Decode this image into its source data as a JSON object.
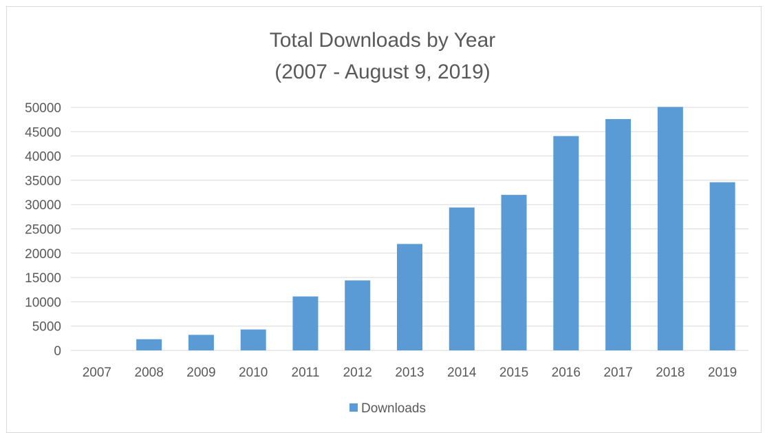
{
  "chart_data": {
    "type": "bar",
    "title": "Total Downloads by Year",
    "subtitle": "(2007 - August 9, 2019)",
    "xlabel": "",
    "ylabel": "",
    "categories": [
      "2007",
      "2008",
      "2009",
      "2010",
      "2011",
      "2012",
      "2013",
      "2014",
      "2015",
      "2016",
      "2017",
      "2018",
      "2019"
    ],
    "series": [
      {
        "name": "Downloads",
        "values": [
          0,
          2300,
          3200,
          4300,
          11100,
          14400,
          21900,
          29400,
          32000,
          44100,
          47600,
          50100,
          34600
        ]
      }
    ],
    "ylim": [
      0,
      50000
    ],
    "yticks": [
      "0",
      "5000",
      "10000",
      "15000",
      "20000",
      "25000",
      "30000",
      "35000",
      "40000",
      "45000",
      "50000"
    ],
    "grid": true,
    "legend_position": "bottom",
    "bar_color": "#5b9bd5",
    "grid_color": "#d9d9d9",
    "text_color": "#595959"
  }
}
